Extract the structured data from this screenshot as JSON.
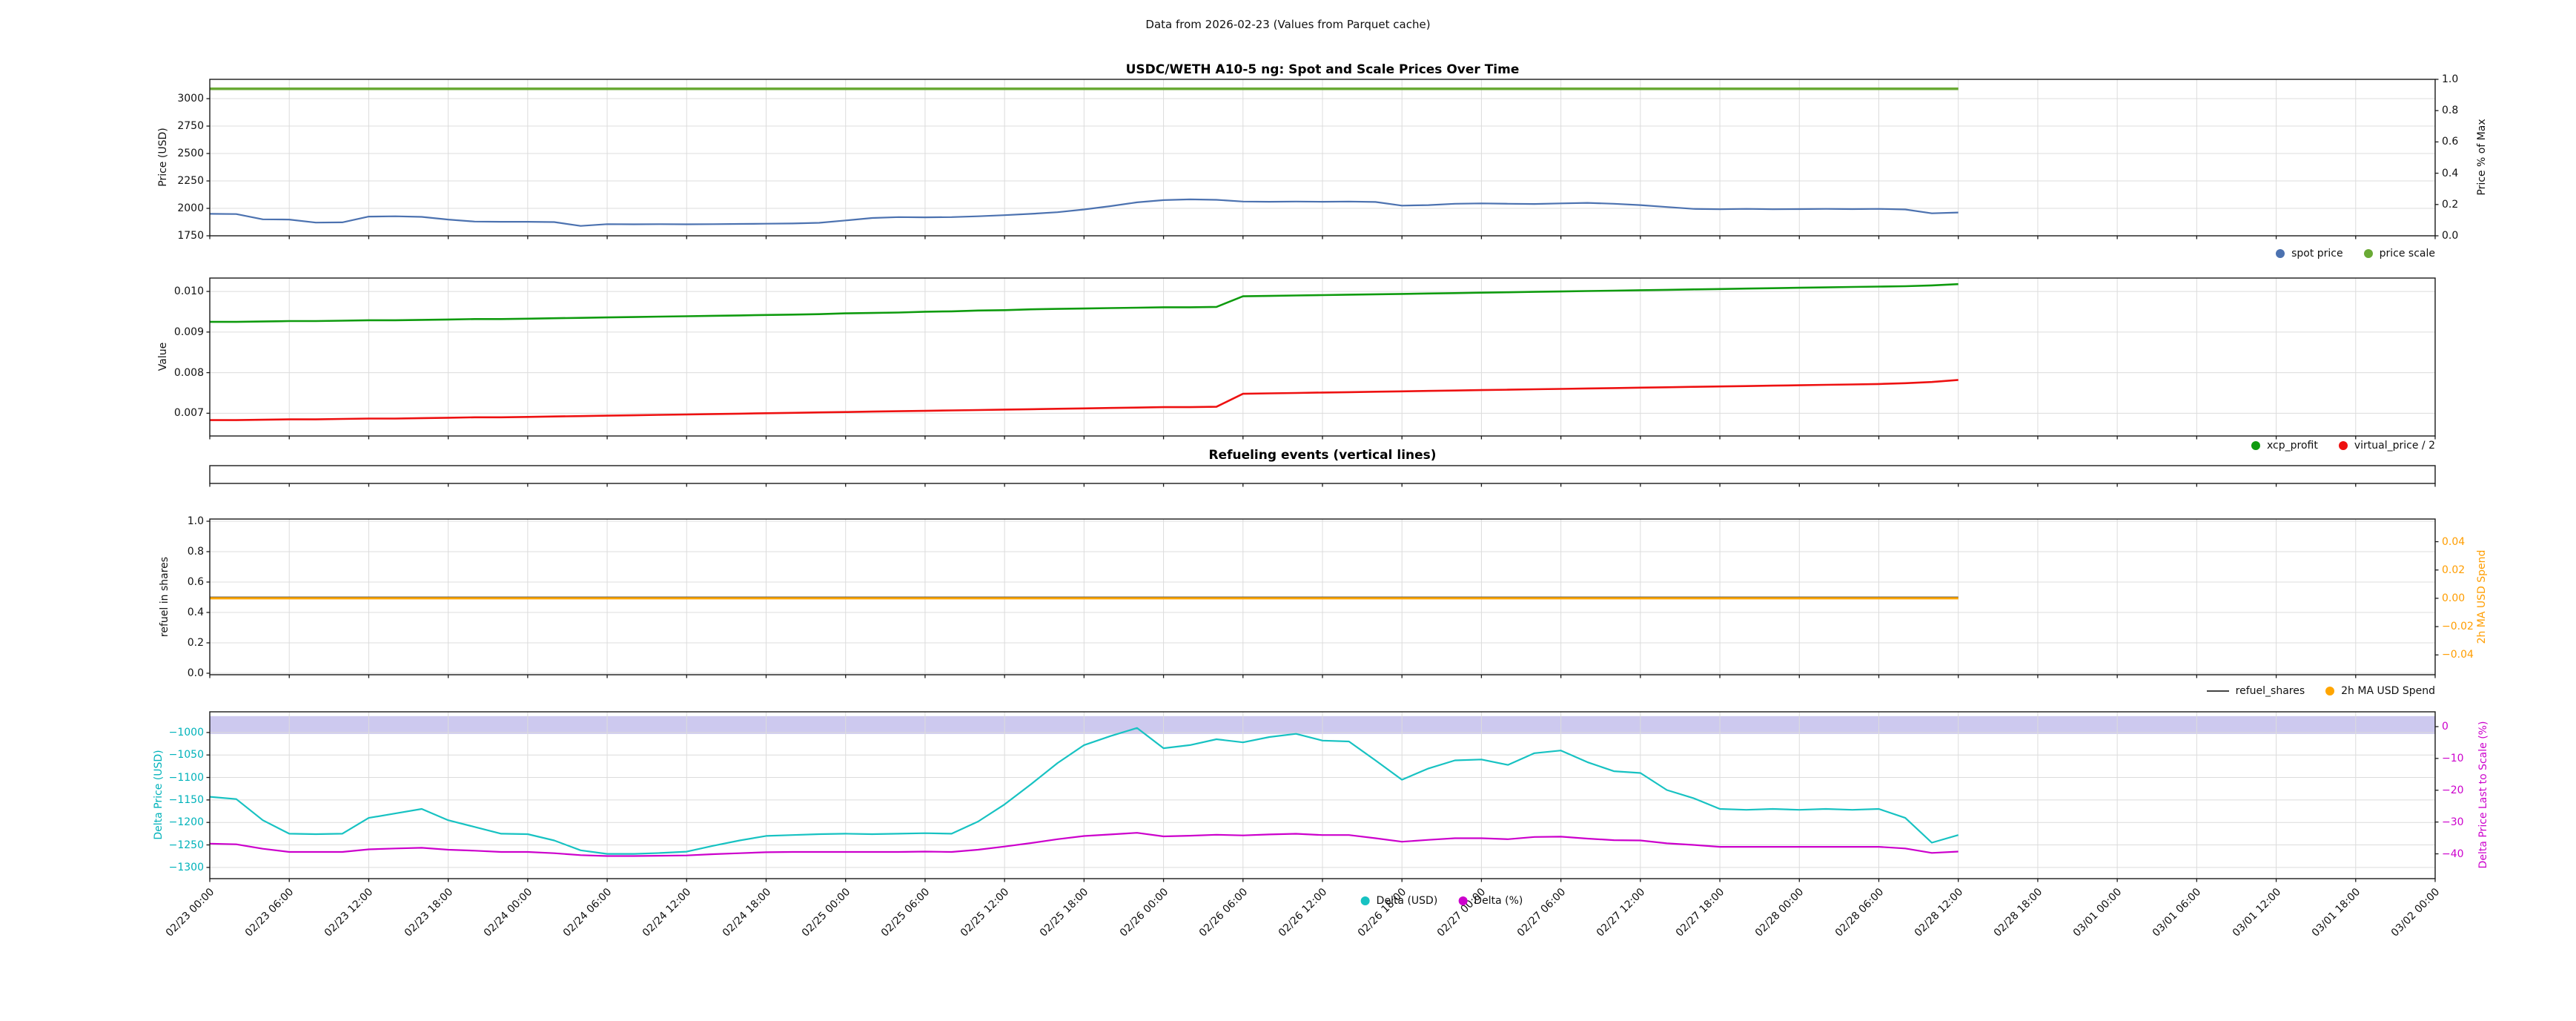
{
  "suptitle": "Data from 2026-02-23 (Values from Parquet cache)",
  "colors": {
    "spot_price": "#4c72b0",
    "price_scale": "#6aaa35",
    "xcp_profit": "#0f9b0f",
    "virtual_price": "#ee1111",
    "refuel_shares": "#444444",
    "ma_usd_spend": "#ffa500",
    "delta_usd": "#17c2c2",
    "delta_pct": "#cc00cc",
    "band": "rgba(123,114,214,0.38)",
    "grid": "#dcdcdc",
    "spine": "#1a1a1a",
    "tick_orange": "#ff9d00",
    "tick_cyan": "#00b2ba",
    "tick_magenta": "#cc00cc"
  },
  "charts": {
    "spot_scale": {
      "title": "USDC/WETH A10-5 ng: Spot and Scale Prices Over Time",
      "ylabel_left": "Price (USD)",
      "ylabel_right": "Price % of Max",
      "yticks_left": [
        {
          "v": 1750,
          "label": "1750"
        },
        {
          "v": 2000,
          "label": "2000"
        },
        {
          "v": 2250,
          "label": "2250"
        },
        {
          "v": 2500,
          "label": "2500"
        },
        {
          "v": 2750,
          "label": "2750"
        },
        {
          "v": 3000,
          "label": "3000"
        }
      ],
      "yticks_right": [
        {
          "v": 0.0,
          "label": "0.0"
        },
        {
          "v": 0.2,
          "label": "0.2"
        },
        {
          "v": 0.4,
          "label": "0.4"
        },
        {
          "v": 0.6,
          "label": "0.6"
        },
        {
          "v": 0.8,
          "label": "0.8"
        },
        {
          "v": 1.0,
          "label": "1.0"
        }
      ],
      "legend": [
        {
          "label": "spot price"
        },
        {
          "label": "price scale"
        }
      ]
    },
    "value": {
      "ylabel_left": "Value",
      "yticks_left": [
        {
          "v": 0.007,
          "label": "0.007"
        },
        {
          "v": 0.008,
          "label": "0.008"
        },
        {
          "v": 0.009,
          "label": "0.009"
        },
        {
          "v": 0.01,
          "label": "0.010"
        }
      ],
      "legend": [
        {
          "label": "xcp_profit"
        },
        {
          "label": "virtual_price / 2"
        }
      ]
    },
    "refuel_events": {
      "title": "Refueling events (vertical lines)"
    },
    "refuel": {
      "ylabel_left": "refuel in shares",
      "ylabel_right": "2h MA USD Spend",
      "yticks_left": [
        {
          "v": 0.0,
          "label": "0.0"
        },
        {
          "v": 0.2,
          "label": "0.2"
        },
        {
          "v": 0.4,
          "label": "0.4"
        },
        {
          "v": 0.6,
          "label": "0.6"
        },
        {
          "v": 0.8,
          "label": "0.8"
        },
        {
          "v": 1.0,
          "label": "1.0"
        }
      ],
      "yticks_right": [
        {
          "v": 0.04,
          "label": "0.04"
        },
        {
          "v": 0.02,
          "label": "0.02"
        },
        {
          "v": 0.0,
          "label": "0.00"
        },
        {
          "v": -0.02,
          "label": "−0.02"
        },
        {
          "v": -0.04,
          "label": "−0.04"
        }
      ],
      "legend": [
        {
          "label": "refuel_shares"
        },
        {
          "label": "2h MA USD Spend"
        }
      ]
    },
    "delta": {
      "ylabel_left": "Delta Price (USD)",
      "ylabel_right": "Delta Price Last to Scale (%)",
      "yticks_left": [
        {
          "v": -1000,
          "label": "−1000"
        },
        {
          "v": -1050,
          "label": "−1050"
        },
        {
          "v": -1100,
          "label": "−1100"
        },
        {
          "v": -1150,
          "label": "−1150"
        },
        {
          "v": -1200,
          "label": "−1200"
        },
        {
          "v": -1250,
          "label": "−1250"
        },
        {
          "v": -1300,
          "label": "−1300"
        }
      ],
      "yticks_right": [
        {
          "v": 0,
          "label": "0"
        },
        {
          "v": -10,
          "label": "−10"
        },
        {
          "v": -20,
          "label": "−20"
        },
        {
          "v": -30,
          "label": "−30"
        },
        {
          "v": -40,
          "label": "−40"
        }
      ],
      "legend": [
        {
          "label": "Delta (USD)"
        },
        {
          "label": "Delta (%)"
        }
      ]
    }
  },
  "x_axis": {
    "range_hours": [
      0,
      168
    ],
    "tick_hours": [
      0,
      6,
      12,
      18,
      24,
      30,
      36,
      42,
      48,
      54,
      60,
      66,
      72,
      78,
      84,
      90,
      96,
      102,
      108,
      114,
      120,
      126,
      132,
      138,
      144,
      150,
      156,
      162,
      168
    ],
    "tick_labels": [
      "02/23 00:00",
      "02/23 06:00",
      "02/23 12:00",
      "02/23 18:00",
      "02/24 00:00",
      "02/24 06:00",
      "02/24 12:00",
      "02/24 18:00",
      "02/25 00:00",
      "02/25 06:00",
      "02/25 12:00",
      "02/25 18:00",
      "02/26 00:00",
      "02/26 06:00",
      "02/26 12:00",
      "02/26 18:00",
      "02/27 00:00",
      "02/27 06:00",
      "02/27 12:00",
      "02/27 18:00",
      "02/28 00:00",
      "02/28 06:00",
      "02/28 12:00",
      "02/28 18:00",
      "03/01 00:00",
      "03/01 06:00",
      "03/01 12:00",
      "03/01 18:00",
      "03/02 00:00"
    ]
  },
  "chart_data": {
    "type": "line",
    "note": "multi-panel time series; x in hours after 02/23 00:00; data ends 02/28 12:00 (132h); x-axis extends to 03/02 00:00 (168h)",
    "x_hours": [
      0,
      2,
      4,
      6,
      8,
      10,
      12,
      14,
      16,
      18,
      20,
      22,
      24,
      26,
      28,
      30,
      32,
      34,
      36,
      38,
      40,
      42,
      44,
      46,
      48,
      50,
      52,
      54,
      56,
      58,
      60,
      62,
      64,
      66,
      68,
      70,
      72,
      74,
      76,
      78,
      80,
      82,
      84,
      86,
      88,
      90,
      92,
      94,
      96,
      98,
      100,
      102,
      104,
      106,
      108,
      110,
      112,
      114,
      116,
      118,
      120,
      122,
      124,
      126,
      128,
      130,
      132
    ],
    "panels": [
      {
        "title": "USDC/WETH A10-5 ng: Spot and Scale Prices Over Time",
        "ylabel": "Price (USD)",
        "ylabel_right": "Price % of Max",
        "ylim": [
          1750,
          3176
        ],
        "ylim_right": [
          0,
          1
        ],
        "series": [
          {
            "name": "spot price",
            "color": "#4c72b0",
            "width": 2.2,
            "values": [
              1950,
              1948,
              1900,
              1898,
              1870,
              1872,
              1925,
              1928,
              1922,
              1898,
              1880,
              1878,
              1878,
              1875,
              1840,
              1856,
              1855,
              1856,
              1855,
              1856,
              1858,
              1860,
              1862,
              1868,
              1890,
              1912,
              1920,
              1918,
              1920,
              1928,
              1938,
              1950,
              1965,
              1990,
              2020,
              2055,
              2075,
              2082,
              2078,
              2062,
              2060,
              2062,
              2060,
              2062,
              2058,
              2025,
              2030,
              2042,
              2045,
              2042,
              2040,
              2045,
              2050,
              2042,
              2030,
              2012,
              1995,
              1992,
              1995,
              1992,
              1993,
              1995,
              1993,
              1995,
              1990,
              1955,
              1962
            ]
          },
          {
            "name": "price scale",
            "color": "#6aaa35",
            "width": 3.5,
            "const": 3090
          }
        ]
      },
      {
        "ylabel": "Value",
        "ylim": [
          0.00644,
          0.01033
        ],
        "series": [
          {
            "name": "xcp_profit",
            "color": "#0f9b0f",
            "width": 2.6,
            "values": [
              0.00925,
              0.00925,
              0.00926,
              0.00927,
              0.00927,
              0.00928,
              0.00929,
              0.00929,
              0.0093,
              0.00931,
              0.00932,
              0.00932,
              0.00933,
              0.00934,
              0.00935,
              0.00936,
              0.00937,
              0.00938,
              0.00939,
              0.0094,
              0.00941,
              0.00942,
              0.00943,
              0.00944,
              0.00946,
              0.00947,
              0.00948,
              0.0095,
              0.00951,
              0.00953,
              0.00954,
              0.00956,
              0.00957,
              0.00958,
              0.00959,
              0.0096,
              0.00961,
              0.00961,
              0.00962,
              0.00988,
              0.00989,
              0.0099,
              0.00991,
              0.00992,
              0.00993,
              0.00994,
              0.00995,
              0.00996,
              0.00997,
              0.00998,
              0.00999,
              0.01,
              0.01001,
              0.01002,
              0.01003,
              0.01004,
              0.01005,
              0.01006,
              0.01007,
              0.01008,
              0.01009,
              0.0101,
              0.01011,
              0.01012,
              0.01013,
              0.01015,
              0.01018
            ]
          },
          {
            "name": "virtual_price / 2",
            "color": "#ee1111",
            "width": 2.6,
            "values": [
              0.00683,
              0.00683,
              0.00684,
              0.00685,
              0.00685,
              0.00686,
              0.00687,
              0.00687,
              0.00688,
              0.00689,
              0.0069,
              0.0069,
              0.00691,
              0.00692,
              0.00693,
              0.00694,
              0.00695,
              0.00696,
              0.00697,
              0.00698,
              0.00699,
              0.007,
              0.00701,
              0.00702,
              0.00703,
              0.00704,
              0.00705,
              0.00706,
              0.00707,
              0.00708,
              0.00709,
              0.0071,
              0.00711,
              0.00712,
              0.00713,
              0.00714,
              0.00715,
              0.00715,
              0.00716,
              0.00748,
              0.00749,
              0.0075,
              0.00751,
              0.00752,
              0.00753,
              0.00754,
              0.00755,
              0.00756,
              0.00757,
              0.00758,
              0.00759,
              0.0076,
              0.00761,
              0.00762,
              0.00763,
              0.00764,
              0.00765,
              0.00766,
              0.00767,
              0.00768,
              0.00769,
              0.0077,
              0.00771,
              0.00772,
              0.00774,
              0.00777,
              0.00782
            ]
          }
        ]
      },
      {
        "title": "Refueling events (vertical lines)",
        "event_hours": [],
        "series": []
      },
      {
        "ylabel": "refuel in shares",
        "ylabel_right": "2h MA USD Spend",
        "ylim": [
          -0.0098,
          1.0146
        ],
        "ylim_right": [
          -0.054,
          0.056
        ],
        "series": [
          {
            "name": "refuel_shares",
            "color": "#444444",
            "width": 1.8,
            "const": 0.5
          },
          {
            "name": "2h MA USD Spend",
            "color": "#ffa500",
            "width": 3,
            "const": 0.0,
            "axis": "right"
          }
        ]
      },
      {
        "ylabel": "Delta Price (USD)",
        "ylabel_right": "Delta Price Last to Scale (%)",
        "ylim": [
          -1325,
          -954
        ],
        "ylim_right": [
          -47.8,
          4.66
        ],
        "band_right": [
          -2.3,
          3.3
        ],
        "series": [
          {
            "name": "Delta (USD)",
            "color": "#17c2c2",
            "width": 2.2,
            "values": [
              -1143,
              -1148,
              -1195,
              -1225,
              -1226,
              -1225,
              -1190,
              -1180,
              -1170,
              -1195,
              -1210,
              -1225,
              -1226,
              -1240,
              -1262,
              -1270,
              -1270,
              -1268,
              -1265,
              -1252,
              -1240,
              -1230,
              -1228,
              -1226,
              -1225,
              -1226,
              -1225,
              -1224,
              -1225,
              -1198,
              -1160,
              -1115,
              -1068,
              -1028,
              -1008,
              -990,
              -1035,
              -1028,
              -1015,
              -1022,
              -1010,
              -1003,
              -1018,
              -1020,
              -1062,
              -1105,
              -1080,
              -1062,
              -1060,
              -1072,
              -1046,
              -1040,
              -1066,
              -1086,
              -1090,
              -1128,
              -1146,
              -1170,
              -1172,
              -1170,
              -1172,
              -1170,
              -1172,
              -1170,
              -1190,
              -1245,
              -1228
            ]
          },
          {
            "name": "Delta (%)",
            "color": "#cc00cc",
            "width": 2.2,
            "axis": "right",
            "values": [
              -36.8,
              -37.0,
              -38.4,
              -39.4,
              -39.4,
              -39.4,
              -38.6,
              -38.3,
              -38.1,
              -38.7,
              -39.0,
              -39.4,
              -39.4,
              -39.8,
              -40.4,
              -40.7,
              -40.7,
              -40.6,
              -40.5,
              -40.1,
              -39.8,
              -39.5,
              -39.4,
              -39.4,
              -39.4,
              -39.4,
              -39.4,
              -39.3,
              -39.4,
              -38.7,
              -37.7,
              -36.6,
              -35.4,
              -34.4,
              -33.9,
              -33.4,
              -34.5,
              -34.3,
              -34.0,
              -34.2,
              -33.9,
              -33.7,
              -34.1,
              -34.1,
              -35.1,
              -36.2,
              -35.6,
              -35.1,
              -35.1,
              -35.4,
              -34.7,
              -34.6,
              -35.2,
              -35.7,
              -35.8,
              -36.7,
              -37.2,
              -37.8,
              -37.8,
              -37.8,
              -37.8,
              -37.8,
              -37.8,
              -37.8,
              -38.3,
              -39.7,
              -39.3
            ]
          }
        ]
      }
    ]
  }
}
